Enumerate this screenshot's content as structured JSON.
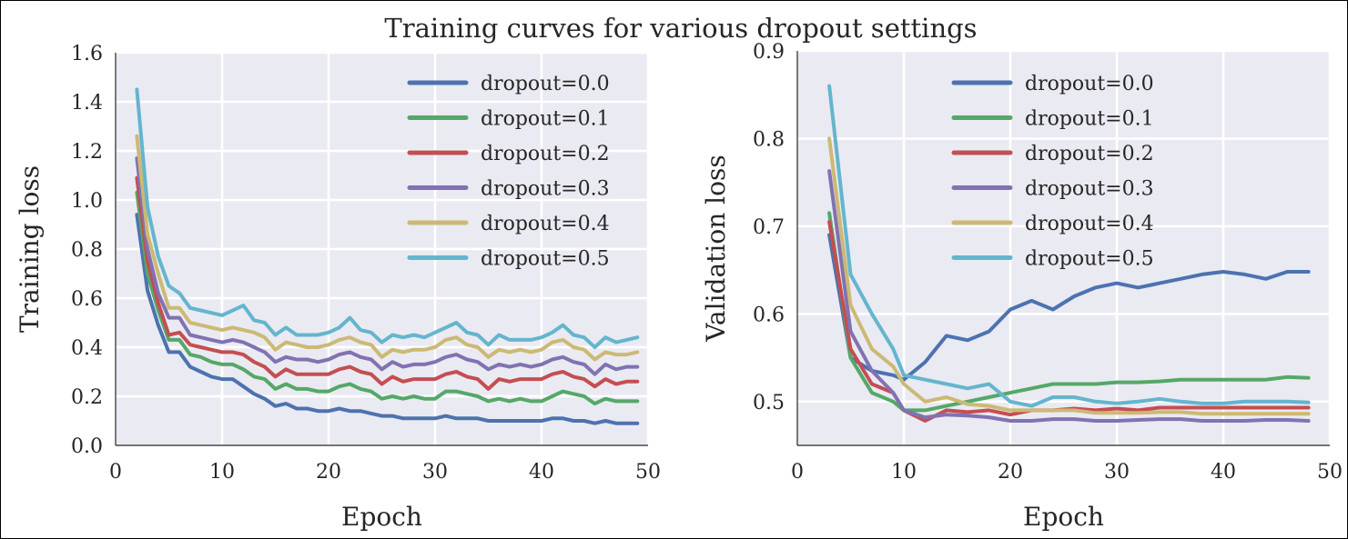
{
  "figure": {
    "title": "Training curves for various dropout settings"
  },
  "chart_data": [
    {
      "type": "line",
      "xlabel": "Epoch",
      "ylabel": "Training loss",
      "xlim": [
        0,
        50
      ],
      "ylim": [
        0.0,
        1.6
      ],
      "xticks": [
        "0",
        "10",
        "20",
        "30",
        "40",
        "50"
      ],
      "yticks": [
        "0.0",
        "0.2",
        "0.4",
        "0.6",
        "0.8",
        "1.0",
        "1.2",
        "1.4",
        "1.6"
      ],
      "xtick_values": [
        0,
        10,
        20,
        30,
        40,
        50
      ],
      "ytick_values": [
        0.0,
        0.2,
        0.4,
        0.6,
        0.8,
        1.0,
        1.2,
        1.4,
        1.6
      ],
      "grid": true,
      "legend_position": "top-right",
      "x": [
        2,
        3,
        4,
        5,
        6,
        7,
        8,
        9,
        10,
        11,
        12,
        13,
        14,
        15,
        16,
        17,
        18,
        19,
        20,
        21,
        22,
        23,
        24,
        25,
        26,
        27,
        28,
        29,
        30,
        31,
        32,
        33,
        34,
        35,
        36,
        37,
        38,
        39,
        40,
        41,
        42,
        43,
        44,
        45,
        46,
        47,
        48,
        49
      ],
      "series": [
        {
          "name": "dropout=0.0",
          "color": "#4c72b0",
          "values": [
            0.94,
            0.63,
            0.49,
            0.38,
            0.38,
            0.32,
            0.3,
            0.28,
            0.27,
            0.27,
            0.24,
            0.21,
            0.19,
            0.16,
            0.17,
            0.15,
            0.15,
            0.14,
            0.14,
            0.15,
            0.14,
            0.14,
            0.13,
            0.12,
            0.12,
            0.11,
            0.11,
            0.11,
            0.11,
            0.12,
            0.11,
            0.11,
            0.11,
            0.1,
            0.1,
            0.1,
            0.1,
            0.1,
            0.1,
            0.11,
            0.11,
            0.1,
            0.1,
            0.09,
            0.1,
            0.09,
            0.09,
            0.09
          ]
        },
        {
          "name": "dropout=0.1",
          "color": "#55a868",
          "values": [
            1.03,
            0.7,
            0.55,
            0.43,
            0.43,
            0.37,
            0.36,
            0.34,
            0.33,
            0.33,
            0.31,
            0.28,
            0.27,
            0.23,
            0.25,
            0.23,
            0.23,
            0.22,
            0.22,
            0.24,
            0.25,
            0.23,
            0.22,
            0.19,
            0.2,
            0.19,
            0.2,
            0.19,
            0.19,
            0.22,
            0.22,
            0.21,
            0.2,
            0.18,
            0.19,
            0.18,
            0.19,
            0.18,
            0.18,
            0.2,
            0.22,
            0.21,
            0.2,
            0.17,
            0.19,
            0.18,
            0.18,
            0.18
          ]
        },
        {
          "name": "dropout=0.2",
          "color": "#c44e52",
          "values": [
            1.09,
            0.75,
            0.58,
            0.45,
            0.46,
            0.41,
            0.4,
            0.39,
            0.38,
            0.38,
            0.37,
            0.34,
            0.32,
            0.28,
            0.31,
            0.29,
            0.29,
            0.29,
            0.29,
            0.31,
            0.32,
            0.3,
            0.29,
            0.25,
            0.28,
            0.26,
            0.27,
            0.27,
            0.27,
            0.29,
            0.3,
            0.28,
            0.27,
            0.23,
            0.27,
            0.26,
            0.27,
            0.27,
            0.27,
            0.29,
            0.3,
            0.28,
            0.27,
            0.24,
            0.27,
            0.25,
            0.26,
            0.26
          ]
        },
        {
          "name": "dropout=0.3",
          "color": "#8172b2",
          "values": [
            1.17,
            0.8,
            0.62,
            0.52,
            0.52,
            0.45,
            0.44,
            0.43,
            0.42,
            0.43,
            0.42,
            0.4,
            0.38,
            0.34,
            0.36,
            0.35,
            0.35,
            0.34,
            0.35,
            0.37,
            0.38,
            0.36,
            0.35,
            0.31,
            0.34,
            0.32,
            0.33,
            0.33,
            0.34,
            0.36,
            0.37,
            0.35,
            0.34,
            0.31,
            0.33,
            0.32,
            0.33,
            0.32,
            0.33,
            0.35,
            0.36,
            0.34,
            0.33,
            0.29,
            0.33,
            0.31,
            0.32,
            0.32
          ]
        },
        {
          "name": "dropout=0.4",
          "color": "#ccb974",
          "values": [
            1.26,
            0.86,
            0.7,
            0.56,
            0.56,
            0.5,
            0.49,
            0.48,
            0.47,
            0.48,
            0.47,
            0.46,
            0.44,
            0.39,
            0.42,
            0.41,
            0.4,
            0.4,
            0.41,
            0.43,
            0.44,
            0.42,
            0.41,
            0.36,
            0.39,
            0.38,
            0.39,
            0.39,
            0.4,
            0.43,
            0.44,
            0.41,
            0.4,
            0.36,
            0.39,
            0.38,
            0.39,
            0.38,
            0.39,
            0.42,
            0.43,
            0.4,
            0.39,
            0.35,
            0.38,
            0.37,
            0.37,
            0.38
          ]
        },
        {
          "name": "dropout=0.5",
          "color": "#64b5cd",
          "values": [
            1.45,
            0.97,
            0.77,
            0.65,
            0.62,
            0.56,
            0.55,
            0.54,
            0.53,
            0.55,
            0.57,
            0.51,
            0.5,
            0.45,
            0.48,
            0.45,
            0.45,
            0.45,
            0.46,
            0.48,
            0.52,
            0.47,
            0.46,
            0.42,
            0.45,
            0.44,
            0.45,
            0.44,
            0.46,
            0.48,
            0.5,
            0.46,
            0.45,
            0.41,
            0.45,
            0.43,
            0.43,
            0.43,
            0.44,
            0.46,
            0.49,
            0.45,
            0.44,
            0.4,
            0.44,
            0.42,
            0.43,
            0.44
          ]
        }
      ]
    },
    {
      "type": "line",
      "xlabel": "Epoch",
      "ylabel": "Validation loss",
      "xlim": [
        0,
        50
      ],
      "ylim": [
        0.45,
        0.9
      ],
      "xticks": [
        "0",
        "10",
        "20",
        "30",
        "40",
        "50"
      ],
      "yticks": [
        "0.5",
        "0.6",
        "0.7",
        "0.8",
        "0.9"
      ],
      "xtick_values": [
        0,
        10,
        20,
        30,
        40,
        50
      ],
      "ytick_values": [
        0.5,
        0.6,
        0.7,
        0.8,
        0.9
      ],
      "grid": true,
      "legend_position": "top-right",
      "x": [
        3,
        5,
        7,
        9,
        10,
        12,
        14,
        16,
        18,
        20,
        22,
        24,
        26,
        28,
        30,
        32,
        34,
        36,
        38,
        40,
        42,
        44,
        46,
        48
      ],
      "series": [
        {
          "name": "dropout=0.0",
          "color": "#4c72b0",
          "values": [
            0.69,
            0.55,
            0.535,
            0.53,
            0.525,
            0.545,
            0.575,
            0.57,
            0.58,
            0.605,
            0.615,
            0.605,
            0.62,
            0.63,
            0.635,
            0.63,
            0.635,
            0.64,
            0.645,
            0.648,
            0.645,
            0.64,
            0.648,
            0.648
          ]
        },
        {
          "name": "dropout=0.1",
          "color": "#55a868",
          "values": [
            0.715,
            0.55,
            0.51,
            0.5,
            0.49,
            0.49,
            0.495,
            0.5,
            0.505,
            0.51,
            0.515,
            0.52,
            0.52,
            0.52,
            0.522,
            0.522,
            0.523,
            0.525,
            0.525,
            0.525,
            0.525,
            0.525,
            0.528,
            0.527
          ]
        },
        {
          "name": "dropout=0.2",
          "color": "#c44e52",
          "values": [
            0.705,
            0.56,
            0.52,
            0.51,
            0.49,
            0.478,
            0.49,
            0.488,
            0.49,
            0.485,
            0.49,
            0.49,
            0.492,
            0.49,
            0.492,
            0.49,
            0.493,
            0.493,
            0.493,
            0.493,
            0.493,
            0.493,
            0.493,
            0.493
          ]
        },
        {
          "name": "dropout=0.3",
          "color": "#8172b2",
          "values": [
            0.763,
            0.58,
            0.535,
            0.51,
            0.49,
            0.482,
            0.485,
            0.484,
            0.482,
            0.478,
            0.478,
            0.48,
            0.48,
            0.478,
            0.478,
            0.479,
            0.48,
            0.48,
            0.478,
            0.478,
            0.478,
            0.479,
            0.479,
            0.478
          ]
        },
        {
          "name": "dropout=0.4",
          "color": "#ccb974",
          "values": [
            0.8,
            0.61,
            0.56,
            0.54,
            0.52,
            0.5,
            0.505,
            0.497,
            0.495,
            0.49,
            0.49,
            0.49,
            0.49,
            0.487,
            0.487,
            0.487,
            0.488,
            0.488,
            0.486,
            0.486,
            0.486,
            0.486,
            0.486,
            0.486
          ]
        },
        {
          "name": "dropout=0.5",
          "color": "#64b5cd",
          "values": [
            0.86,
            0.645,
            0.6,
            0.56,
            0.53,
            0.525,
            0.52,
            0.515,
            0.52,
            0.5,
            0.495,
            0.505,
            0.505,
            0.5,
            0.498,
            0.5,
            0.503,
            0.5,
            0.498,
            0.498,
            0.5,
            0.5,
            0.5,
            0.499
          ]
        }
      ]
    }
  ]
}
